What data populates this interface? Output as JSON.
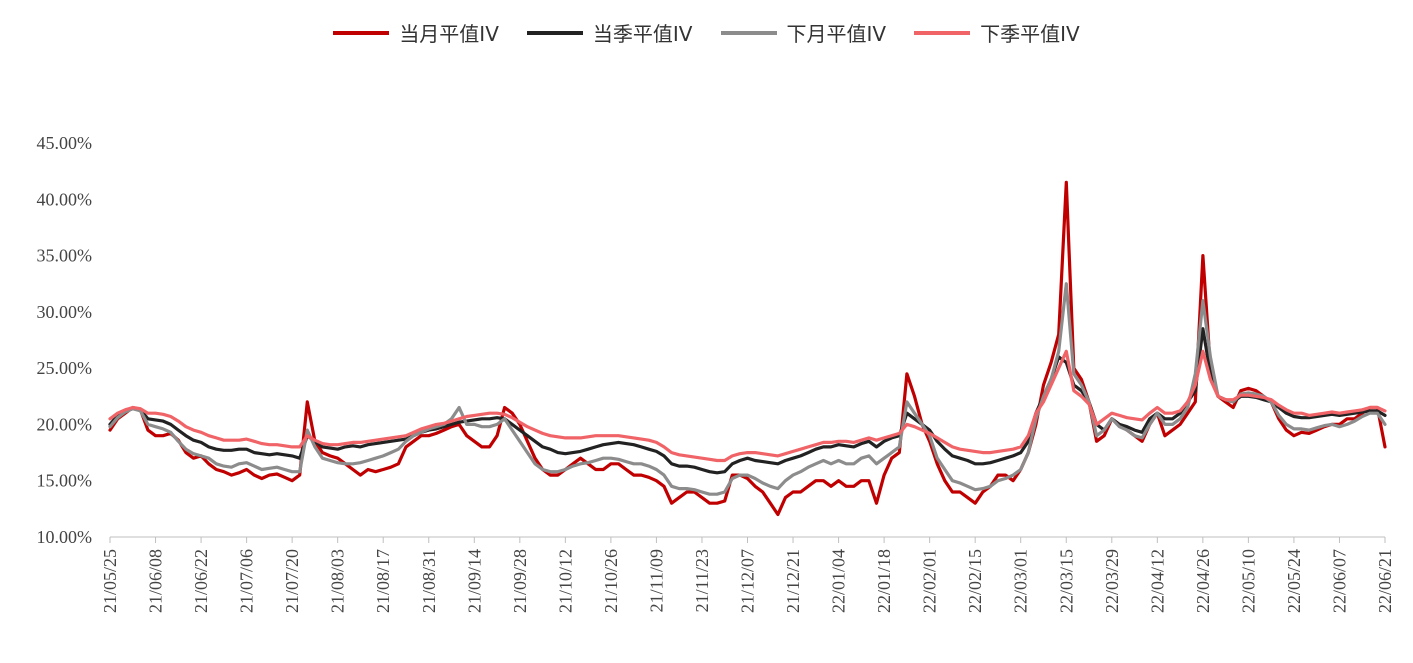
{
  "chart_data": {
    "type": "line",
    "title": "",
    "xlabel": "",
    "ylabel": "",
    "ylim": [
      0.1,
      0.45
    ],
    "y_ticks": [
      "10.00%",
      "15.00%",
      "20.00%",
      "25.00%",
      "30.00%",
      "35.00%",
      "40.00%",
      "45.00%"
    ],
    "x_ticks": [
      "21/05/25",
      "21/06/08",
      "21/06/22",
      "21/07/06",
      "21/07/20",
      "21/08/03",
      "21/08/17",
      "21/08/31",
      "21/09/14",
      "21/09/28",
      "21/10/12",
      "21/10/26",
      "21/11/09",
      "21/11/23",
      "21/12/07",
      "21/12/21",
      "22/01/04",
      "22/01/18",
      "22/02/01",
      "22/02/15",
      "22/03/01",
      "22/03/15",
      "22/03/29",
      "22/04/12",
      "22/04/26",
      "22/05/10",
      "22/05/24",
      "22/06/07",
      "22/06/21"
    ],
    "legend_position": "top",
    "grid": false,
    "series": [
      {
        "name": "当月平值IV",
        "color": "#c00000",
        "values": [
          0.195,
          0.205,
          0.21,
          0.215,
          0.213,
          0.195,
          0.19,
          0.19,
          0.192,
          0.186,
          0.175,
          0.17,
          0.172,
          0.165,
          0.16,
          0.158,
          0.155,
          0.157,
          0.16,
          0.155,
          0.152,
          0.155,
          0.156,
          0.153,
          0.15,
          0.155,
          0.22,
          0.185,
          0.175,
          0.172,
          0.17,
          0.165,
          0.16,
          0.155,
          0.16,
          0.158,
          0.16,
          0.162,
          0.165,
          0.18,
          0.185,
          0.19,
          0.19,
          0.192,
          0.195,
          0.198,
          0.2,
          0.19,
          0.185,
          0.18,
          0.18,
          0.19,
          0.215,
          0.21,
          0.2,
          0.185,
          0.17,
          0.16,
          0.155,
          0.155,
          0.16,
          0.165,
          0.17,
          0.165,
          0.16,
          0.16,
          0.165,
          0.165,
          0.16,
          0.155,
          0.155,
          0.153,
          0.15,
          0.145,
          0.13,
          0.135,
          0.14,
          0.14,
          0.135,
          0.13,
          0.13,
          0.132,
          0.155,
          0.155,
          0.152,
          0.145,
          0.14,
          0.13,
          0.12,
          0.135,
          0.14,
          0.14,
          0.145,
          0.15,
          0.15,
          0.145,
          0.15,
          0.145,
          0.145,
          0.15,
          0.15,
          0.13,
          0.155,
          0.17,
          0.175,
          0.245,
          0.225,
          0.2,
          0.185,
          0.165,
          0.15,
          0.14,
          0.14,
          0.135,
          0.13,
          0.14,
          0.145,
          0.155,
          0.155,
          0.15,
          0.16,
          0.175,
          0.2,
          0.235,
          0.255,
          0.28,
          0.415,
          0.25,
          0.24,
          0.22,
          0.185,
          0.19,
          0.205,
          0.2,
          0.195,
          0.19,
          0.185,
          0.2,
          0.21,
          0.19,
          0.195,
          0.2,
          0.21,
          0.22,
          0.35,
          0.25,
          0.225,
          0.22,
          0.215,
          0.23,
          0.232,
          0.23,
          0.225,
          0.22,
          0.205,
          0.195,
          0.19,
          0.193,
          0.192,
          0.195,
          0.198,
          0.2,
          0.2,
          0.205,
          0.205,
          0.21,
          0.215,
          0.215,
          0.18
        ]
      },
      {
        "name": "当季平值IV",
        "color": "#222222",
        "values": [
          0.2,
          0.208,
          0.212,
          0.214,
          0.213,
          0.205,
          0.204,
          0.203,
          0.2,
          0.195,
          0.19,
          0.186,
          0.184,
          0.18,
          0.178,
          0.177,
          0.177,
          0.178,
          0.178,
          0.175,
          0.174,
          0.173,
          0.174,
          0.173,
          0.172,
          0.17,
          0.19,
          0.185,
          0.18,
          0.179,
          0.178,
          0.18,
          0.181,
          0.18,
          0.182,
          0.183,
          0.184,
          0.185,
          0.186,
          0.187,
          0.19,
          0.193,
          0.195,
          0.196,
          0.198,
          0.2,
          0.202,
          0.203,
          0.204,
          0.205,
          0.205,
          0.206,
          0.205,
          0.2,
          0.195,
          0.19,
          0.185,
          0.18,
          0.178,
          0.175,
          0.174,
          0.175,
          0.176,
          0.178,
          0.18,
          0.182,
          0.183,
          0.184,
          0.183,
          0.182,
          0.18,
          0.178,
          0.176,
          0.172,
          0.165,
          0.163,
          0.163,
          0.162,
          0.16,
          0.158,
          0.157,
          0.158,
          0.165,
          0.168,
          0.17,
          0.168,
          0.167,
          0.166,
          0.165,
          0.168,
          0.17,
          0.172,
          0.175,
          0.178,
          0.18,
          0.18,
          0.182,
          0.181,
          0.18,
          0.183,
          0.185,
          0.18,
          0.185,
          0.188,
          0.19,
          0.21,
          0.205,
          0.2,
          0.195,
          0.185,
          0.178,
          0.172,
          0.17,
          0.168,
          0.165,
          0.165,
          0.166,
          0.168,
          0.17,
          0.172,
          0.175,
          0.185,
          0.21,
          0.225,
          0.24,
          0.26,
          0.255,
          0.235,
          0.23,
          0.22,
          0.2,
          0.195,
          0.205,
          0.2,
          0.198,
          0.195,
          0.193,
          0.205,
          0.21,
          0.205,
          0.205,
          0.21,
          0.22,
          0.23,
          0.285,
          0.245,
          0.225,
          0.222,
          0.22,
          0.225,
          0.225,
          0.224,
          0.222,
          0.22,
          0.215,
          0.21,
          0.207,
          0.206,
          0.206,
          0.207,
          0.208,
          0.209,
          0.208,
          0.209,
          0.21,
          0.211,
          0.212,
          0.212,
          0.208
        ]
      },
      {
        "name": "下月平值IV",
        "color": "#8c8c8c",
        "values": [
          0.198,
          0.206,
          0.211,
          0.214,
          0.212,
          0.2,
          0.198,
          0.196,
          0.193,
          0.185,
          0.178,
          0.174,
          0.172,
          0.17,
          0.165,
          0.163,
          0.162,
          0.165,
          0.166,
          0.163,
          0.16,
          0.161,
          0.162,
          0.16,
          0.158,
          0.158,
          0.195,
          0.18,
          0.17,
          0.168,
          0.166,
          0.165,
          0.165,
          0.166,
          0.168,
          0.17,
          0.172,
          0.175,
          0.178,
          0.185,
          0.19,
          0.193,
          0.196,
          0.198,
          0.2,
          0.205,
          0.215,
          0.2,
          0.2,
          0.198,
          0.198,
          0.2,
          0.205,
          0.195,
          0.185,
          0.175,
          0.165,
          0.16,
          0.158,
          0.158,
          0.16,
          0.163,
          0.165,
          0.166,
          0.168,
          0.17,
          0.17,
          0.169,
          0.167,
          0.165,
          0.165,
          0.163,
          0.16,
          0.155,
          0.145,
          0.143,
          0.143,
          0.142,
          0.14,
          0.138,
          0.138,
          0.14,
          0.152,
          0.155,
          0.155,
          0.152,
          0.148,
          0.145,
          0.143,
          0.15,
          0.155,
          0.158,
          0.162,
          0.165,
          0.168,
          0.165,
          0.168,
          0.165,
          0.165,
          0.17,
          0.172,
          0.165,
          0.17,
          0.175,
          0.18,
          0.22,
          0.21,
          0.2,
          0.19,
          0.17,
          0.16,
          0.15,
          0.148,
          0.145,
          0.142,
          0.143,
          0.145,
          0.15,
          0.152,
          0.155,
          0.16,
          0.175,
          0.205,
          0.225,
          0.24,
          0.265,
          0.325,
          0.245,
          0.235,
          0.22,
          0.19,
          0.195,
          0.205,
          0.198,
          0.195,
          0.19,
          0.188,
          0.2,
          0.21,
          0.2,
          0.2,
          0.205,
          0.215,
          0.245,
          0.31,
          0.26,
          0.225,
          0.222,
          0.22,
          0.227,
          0.228,
          0.227,
          0.225,
          0.22,
          0.208,
          0.2,
          0.196,
          0.196,
          0.195,
          0.197,
          0.199,
          0.2,
          0.198,
          0.2,
          0.203,
          0.207,
          0.21,
          0.21,
          0.2
        ]
      },
      {
        "name": "下季平值IV",
        "color": "#f06468",
        "values": [
          0.205,
          0.21,
          0.213,
          0.215,
          0.214,
          0.21,
          0.21,
          0.209,
          0.207,
          0.203,
          0.198,
          0.195,
          0.193,
          0.19,
          0.188,
          0.186,
          0.186,
          0.186,
          0.187,
          0.185,
          0.183,
          0.182,
          0.182,
          0.181,
          0.18,
          0.18,
          0.19,
          0.186,
          0.183,
          0.182,
          0.182,
          0.183,
          0.184,
          0.184,
          0.185,
          0.186,
          0.187,
          0.188,
          0.189,
          0.19,
          0.193,
          0.196,
          0.198,
          0.2,
          0.201,
          0.203,
          0.205,
          0.207,
          0.208,
          0.209,
          0.21,
          0.21,
          0.209,
          0.206,
          0.202,
          0.198,
          0.195,
          0.192,
          0.19,
          0.189,
          0.188,
          0.188,
          0.188,
          0.189,
          0.19,
          0.19,
          0.19,
          0.19,
          0.189,
          0.188,
          0.187,
          0.186,
          0.184,
          0.18,
          0.175,
          0.173,
          0.172,
          0.171,
          0.17,
          0.169,
          0.168,
          0.168,
          0.172,
          0.174,
          0.175,
          0.175,
          0.174,
          0.173,
          0.172,
          0.174,
          0.176,
          0.178,
          0.18,
          0.182,
          0.184,
          0.184,
          0.185,
          0.185,
          0.184,
          0.186,
          0.188,
          0.186,
          0.188,
          0.19,
          0.192,
          0.2,
          0.198,
          0.195,
          0.192,
          0.188,
          0.184,
          0.18,
          0.178,
          0.177,
          0.176,
          0.175,
          0.175,
          0.176,
          0.177,
          0.178,
          0.18,
          0.19,
          0.21,
          0.22,
          0.235,
          0.25,
          0.265,
          0.23,
          0.225,
          0.218,
          0.2,
          0.205,
          0.21,
          0.208,
          0.206,
          0.205,
          0.204,
          0.21,
          0.215,
          0.21,
          0.21,
          0.212,
          0.22,
          0.235,
          0.265,
          0.24,
          0.225,
          0.222,
          0.222,
          0.226,
          0.226,
          0.225,
          0.224,
          0.222,
          0.217,
          0.213,
          0.21,
          0.21,
          0.208,
          0.209,
          0.21,
          0.211,
          0.21,
          0.211,
          0.212,
          0.213,
          0.215,
          0.215,
          0.212
        ]
      }
    ]
  }
}
